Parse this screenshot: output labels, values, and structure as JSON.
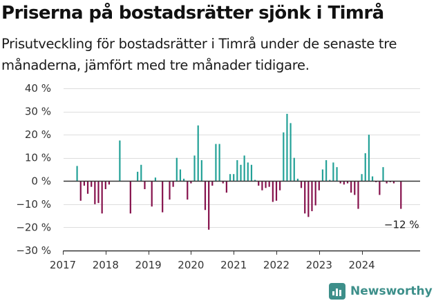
{
  "header": {
    "title": "Priserna på bostadsrätter sjönk i Timrå",
    "subtitle": "Prisutveckling för bostadsrätter i Timrå under de senaste tre månaderna, jämfört med tre månader tidigare."
  },
  "brand": {
    "name": "Newsworthy",
    "icon": "newsworthy-logo-icon"
  },
  "colors": {
    "positive": "#23a197",
    "negative": "#85114c",
    "grid": "#dddddd",
    "axis": "#333333",
    "brand": "#3d8f8a"
  },
  "chart_data": {
    "type": "bar",
    "title": "Priserna på bostadsrätter sjönk i Timrå",
    "subtitle": "Prisutveckling för bostadsrätter i Timrå under de senaste tre månaderna, jämfört med tre månader tidigare.",
    "x_unit": "year",
    "xlim": [
      2017,
      2025.25
    ],
    "ylim": [
      -30,
      40
    ],
    "y_unit": "%",
    "yticks": [
      {
        "value": 40,
        "label": "40 %"
      },
      {
        "value": 30,
        "label": "30 %"
      },
      {
        "value": 20,
        "label": "20 %"
      },
      {
        "value": 10,
        "label": "10 %"
      },
      {
        "value": 0,
        "label": "0 %"
      },
      {
        "value": -10,
        "label": "−10 %"
      },
      {
        "value": -20,
        "label": "−20 %"
      },
      {
        "value": -30,
        "label": "−30 %"
      }
    ],
    "xticks": [
      {
        "value": 2017,
        "label": "2017"
      },
      {
        "value": 2018,
        "label": "2018"
      },
      {
        "value": 2019,
        "label": "2019"
      },
      {
        "value": 2020,
        "label": "2020"
      },
      {
        "value": 2021,
        "label": "2021"
      },
      {
        "value": 2022,
        "label": "2022"
      },
      {
        "value": 2023,
        "label": "2023"
      },
      {
        "value": 2024,
        "label": "2024"
      }
    ],
    "grid": true,
    "legend": "none",
    "annotation": {
      "text": "−12 %",
      "x": 2024.917,
      "y": -12
    },
    "x": [
      2017.333,
      2017.417,
      2017.5,
      2017.583,
      2017.667,
      2017.75,
      2017.833,
      2017.917,
      2018.0,
      2018.083,
      2018.333,
      2018.583,
      2018.75,
      2018.833,
      2018.917,
      2019.083,
      2019.167,
      2019.333,
      2019.5,
      2019.583,
      2019.667,
      2019.75,
      2019.833,
      2019.917,
      2020.0,
      2020.083,
      2020.167,
      2020.25,
      2020.333,
      2020.417,
      2020.5,
      2020.583,
      2020.667,
      2020.75,
      2020.833,
      2020.917,
      2021.0,
      2021.083,
      2021.167,
      2021.25,
      2021.333,
      2021.417,
      2021.5,
      2021.583,
      2021.667,
      2021.75,
      2021.833,
      2021.917,
      2022.0,
      2022.083,
      2022.167,
      2022.25,
      2022.333,
      2022.417,
      2022.5,
      2022.583,
      2022.667,
      2022.75,
      2022.833,
      2022.917,
      2023.0,
      2023.083,
      2023.167,
      2023.25,
      2023.333,
      2023.417,
      2023.5,
      2023.583,
      2023.667,
      2023.75,
      2023.833,
      2023.917,
      2024.0,
      2024.083,
      2024.167,
      2024.25,
      2024.333,
      2024.417,
      2024.5,
      2024.583,
      2024.667,
      2024.75,
      2024.917
    ],
    "values": [
      6.5,
      -8.5,
      -2.0,
      -5.5,
      -2.5,
      -10.0,
      -9.5,
      -14.0,
      -3.5,
      -1.5,
      17.5,
      -14.0,
      4.0,
      7.0,
      -3.5,
      -11.0,
      1.5,
      -13.5,
      -8.0,
      -2.5,
      10.0,
      5.0,
      1.0,
      -8.0,
      -1.0,
      11.0,
      24.0,
      9.0,
      -12.5,
      -21.0,
      -2.0,
      16.0,
      16.0,
      -1.0,
      -5.0,
      3.0,
      3.0,
      9.0,
      7.0,
      11.0,
      8.0,
      7.0,
      0.5,
      -2.0,
      -4.0,
      -3.0,
      -2.5,
      -9.0,
      -8.5,
      -4.0,
      21.0,
      29.0,
      25.0,
      10.0,
      1.0,
      -3.0,
      -14.0,
      -15.5,
      -13.0,
      -10.5,
      -4.0,
      5.0,
      9.0,
      0.5,
      8.0,
      6.0,
      -1.0,
      -1.5,
      -1.0,
      -5.0,
      -6.0,
      -12.0,
      3.0,
      12.0,
      20.0,
      2.0,
      -0.5,
      -6.0,
      6.0,
      -1.0,
      -0.5,
      -1.0,
      -12.0
    ]
  }
}
